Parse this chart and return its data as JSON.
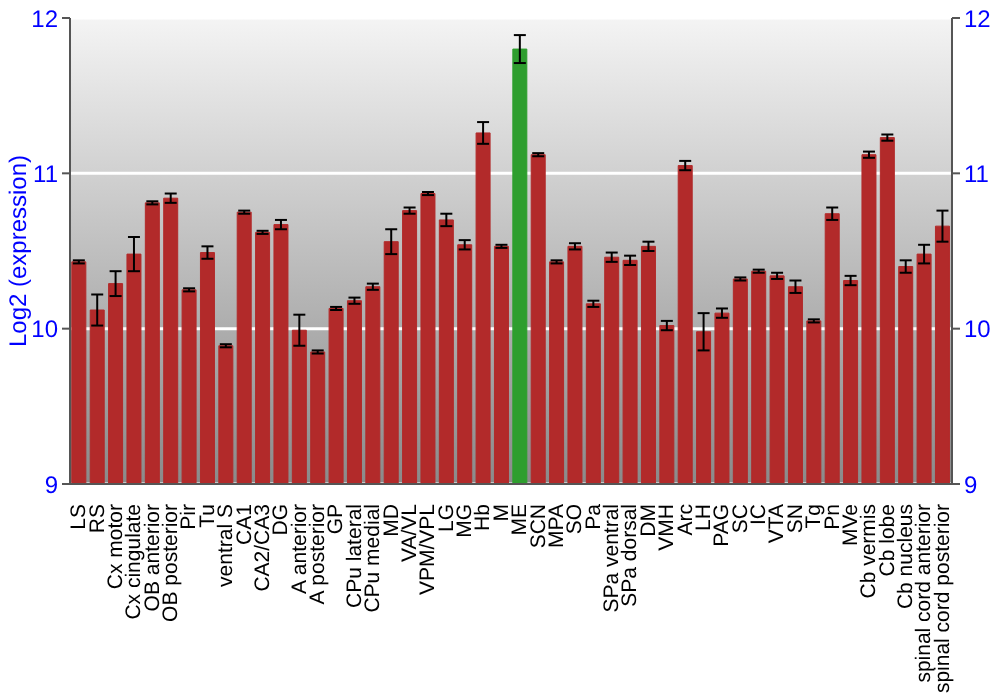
{
  "chart_data": {
    "type": "bar",
    "ylabel": "Log2 (expression)",
    "categories": [
      "LS",
      "RS",
      "Cx motor",
      "Cx cingulate",
      "OB anterior",
      "OB posterior",
      "Pir",
      "Tu",
      "ventral S",
      "CA1",
      "CA2/CA3",
      "DG",
      "A anterior",
      "A posterior",
      "GP",
      "CPu lateral",
      "CPu medial",
      "MD",
      "VA/VL",
      "VPM/VPL",
      "LG",
      "MG",
      "Hb",
      "M",
      "ME",
      "SCN",
      "MPA",
      "SO",
      "Pa",
      "SPa ventral",
      "SPa dorsal",
      "DM",
      "VMH",
      "Arc",
      "LH",
      "PAG",
      "SC",
      "IC",
      "VTA",
      "SN",
      "Tg",
      "Pn",
      "MVe",
      "Cb vermis",
      "Cb lobe",
      "Cb nucleus",
      "spinal cord anterior",
      "spinal cord posterior"
    ],
    "values": [
      10.43,
      10.12,
      10.29,
      10.48,
      10.81,
      10.84,
      10.25,
      10.49,
      9.89,
      10.75,
      10.62,
      10.67,
      9.99,
      9.85,
      10.13,
      10.18,
      10.27,
      10.56,
      10.76,
      10.87,
      10.7,
      10.54,
      11.26,
      10.53,
      11.8,
      11.12,
      10.43,
      10.53,
      10.16,
      10.46,
      10.44,
      10.53,
      10.02,
      11.05,
      9.98,
      10.1,
      10.32,
      10.37,
      10.34,
      10.27,
      10.05,
      10.74,
      10.31,
      11.12,
      11.23,
      10.4,
      10.48,
      10.66
    ],
    "errors": [
      0.01,
      0.1,
      0.08,
      0.11,
      0.01,
      0.03,
      0.01,
      0.04,
      0.01,
      0.01,
      0.01,
      0.03,
      0.1,
      0.01,
      0.01,
      0.02,
      0.02,
      0.08,
      0.02,
      0.01,
      0.04,
      0.03,
      0.07,
      0.01,
      0.09,
      0.01,
      0.01,
      0.02,
      0.02,
      0.03,
      0.03,
      0.03,
      0.03,
      0.03,
      0.12,
      0.03,
      0.01,
      0.01,
      0.02,
      0.04,
      0.01,
      0.04,
      0.03,
      0.02,
      0.02,
      0.04,
      0.06,
      0.1
    ],
    "colors": [
      "#b22a2a",
      "#b22a2a",
      "#b22a2a",
      "#b22a2a",
      "#b22a2a",
      "#b22a2a",
      "#b22a2a",
      "#b22a2a",
      "#b22a2a",
      "#b22a2a",
      "#b22a2a",
      "#b22a2a",
      "#b22a2a",
      "#b22a2a",
      "#b22a2a",
      "#b22a2a",
      "#b22a2a",
      "#b22a2a",
      "#b22a2a",
      "#b22a2a",
      "#b22a2a",
      "#b22a2a",
      "#b22a2a",
      "#b22a2a",
      "#2e9e2e",
      "#b22a2a",
      "#b22a2a",
      "#b22a2a",
      "#b22a2a",
      "#b22a2a",
      "#b22a2a",
      "#b22a2a",
      "#b22a2a",
      "#b22a2a",
      "#b22a2a",
      "#b22a2a",
      "#b22a2a",
      "#b22a2a",
      "#b22a2a",
      "#b22a2a",
      "#b22a2a",
      "#b22a2a",
      "#b22a2a",
      "#b22a2a",
      "#b22a2a",
      "#b22a2a",
      "#b22a2a",
      "#b22a2a"
    ],
    "ylim": [
      9,
      12
    ],
    "yticks": [
      9,
      10,
      11,
      12
    ],
    "y2lim": [
      9,
      12
    ],
    "y2ticks": [
      9,
      10,
      11,
      12
    ],
    "grid": "y"
  }
}
